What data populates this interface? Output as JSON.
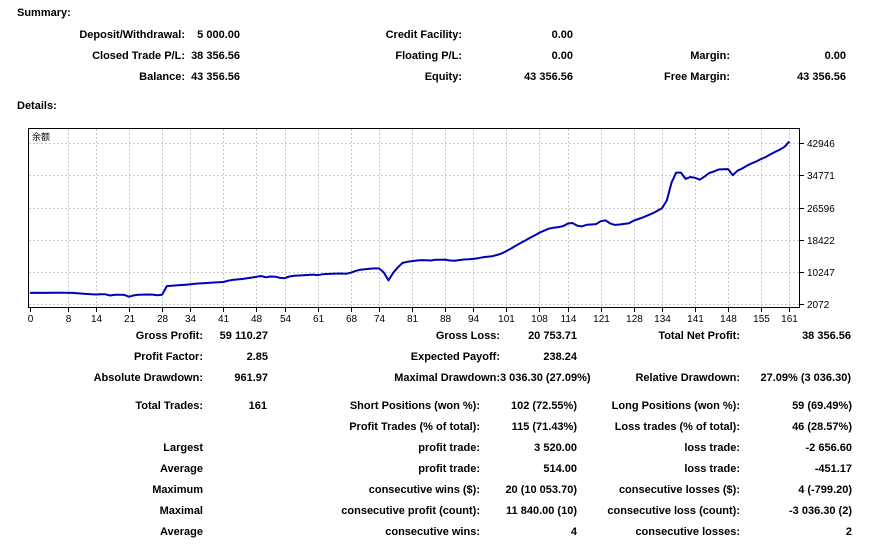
{
  "summary": {
    "heading": "Summary:",
    "rows": [
      [
        "Deposit/Withdrawal:",
        "5 000.00",
        "Credit Facility:",
        "0.00",
        "",
        ""
      ],
      [
        "Closed Trade P/L:",
        "38 356.56",
        "Floating P/L:",
        "0.00",
        "Margin:",
        "0.00"
      ],
      [
        "Balance:",
        "43 356.56",
        "Equity:",
        "43 356.56",
        "Free Margin:",
        "43 356.56"
      ]
    ]
  },
  "details": {
    "heading": "Details:",
    "rows": [
      [
        "Gross Profit:",
        "59 110.27",
        "Gross Loss:",
        "20 753.71",
        "Total Net Profit:",
        "38 356.56"
      ],
      [
        "Profit Factor:",
        "2.85",
        "Expected Payoff:",
        "238.24",
        "",
        ""
      ],
      [
        "Absolute Drawdown:",
        "961.97",
        "Maximal Drawdown:",
        "3 036.30 (27.09%)",
        "Relative Drawdown:",
        "27.09% (3 036.30)"
      ]
    ]
  },
  "stats": {
    "rows": [
      [
        "Total Trades:",
        "161",
        "Short Positions (won %):",
        "102 (72.55%)",
        "Long Positions (won %):",
        "59 (69.49%)"
      ],
      [
        "",
        "",
        "Profit Trades (% of total):",
        "115 (71.43%)",
        "Loss trades (% of total):",
        "46 (28.57%)"
      ],
      [
        "Largest",
        "",
        "profit trade:",
        "3 520.00",
        "loss trade:",
        "-2 656.60"
      ],
      [
        "Average",
        "",
        "profit trade:",
        "514.00",
        "loss trade:",
        "-451.17"
      ],
      [
        "Maximum",
        "",
        "consecutive wins ($):",
        "20 (10 053.70)",
        "consecutive losses ($):",
        "4 (-799.20)"
      ],
      [
        "Maximal",
        "",
        "consecutive profit (count):",
        "11 840.00 (10)",
        "consecutive loss (count):",
        "-3 036.30 (2)"
      ],
      [
        "Average",
        "",
        "consecutive wins:",
        "4",
        "consecutive losses:",
        "2"
      ]
    ]
  },
  "chart_data": {
    "type": "line",
    "title": "",
    "legend_label": "余额",
    "line_color": "#0000B4",
    "grid_color": "#C9C9C9",
    "border_color": "#000000",
    "legend_position": "top-left",
    "grid": true,
    "xlabel": "",
    "ylabel": "",
    "x_ticks": [
      0,
      8,
      14,
      21,
      28,
      34,
      41,
      48,
      54,
      61,
      68,
      74,
      81,
      88,
      94,
      101,
      108,
      114,
      121,
      128,
      134,
      141,
      148,
      155,
      161
    ],
    "y_ticks": [
      2072,
      10247,
      18422,
      26596,
      34771,
      42946
    ],
    "x_range": [
      -0.42,
      163.25
    ],
    "y_range": [
      1186,
      46745
    ],
    "points": [
      [
        0,
        5000
      ],
      [
        1,
        5060
      ],
      [
        3,
        5020
      ],
      [
        5,
        5070
      ],
      [
        7,
        5050
      ],
      [
        9,
        5000
      ],
      [
        11,
        4820
      ],
      [
        13,
        4660
      ],
      [
        14,
        4600
      ],
      [
        15,
        4680
      ],
      [
        16,
        4660
      ],
      [
        17,
        4360
      ],
      [
        18,
        4520
      ],
      [
        19,
        4550
      ],
      [
        20,
        4500
      ],
      [
        21,
        4038
      ],
      [
        22,
        4380
      ],
      [
        23,
        4560
      ],
      [
        25,
        4600
      ],
      [
        26,
        4580
      ],
      [
        27,
        4420
      ],
      [
        28,
        4550
      ],
      [
        29,
        6740
      ],
      [
        31,
        6900
      ],
      [
        33,
        7080
      ],
      [
        35,
        7300
      ],
      [
        37,
        7500
      ],
      [
        39,
        7650
      ],
      [
        41,
        7760
      ],
      [
        42,
        8100
      ],
      [
        43,
        8300
      ],
      [
        45,
        8520
      ],
      [
        46,
        8700
      ],
      [
        47,
        8880
      ],
      [
        48,
        9080
      ],
      [
        49,
        9280
      ],
      [
        50,
        8950
      ],
      [
        51,
        9150
      ],
      [
        52,
        9100
      ],
      [
        53,
        8800
      ],
      [
        54,
        8720
      ],
      [
        55,
        9150
      ],
      [
        56,
        9330
      ],
      [
        58,
        9500
      ],
      [
        60,
        9630
      ],
      [
        61,
        9520
      ],
      [
        62,
        9720
      ],
      [
        64,
        9880
      ],
      [
        66,
        9930
      ],
      [
        67,
        9830
      ],
      [
        68,
        10120
      ],
      [
        69,
        10520
      ],
      [
        70,
        10870
      ],
      [
        71,
        11000
      ],
      [
        72,
        11130
      ],
      [
        73,
        11210
      ],
      [
        74,
        11206
      ],
      [
        75,
        10200
      ],
      [
        76,
        8170
      ],
      [
        77,
        10100
      ],
      [
        78,
        11500
      ],
      [
        79,
        12600
      ],
      [
        80,
        12890
      ],
      [
        81,
        13060
      ],
      [
        82,
        13200
      ],
      [
        83,
        13320
      ],
      [
        84,
        13260
      ],
      [
        85,
        13220
      ],
      [
        86,
        13380
      ],
      [
        87,
        13420
      ],
      [
        88,
        13430
      ],
      [
        89,
        13200
      ],
      [
        90,
        13150
      ],
      [
        91,
        13300
      ],
      [
        92,
        13450
      ],
      [
        93,
        13520
      ],
      [
        94,
        13610
      ],
      [
        95,
        13800
      ],
      [
        96,
        14010
      ],
      [
        97,
        14150
      ],
      [
        98,
        14300
      ],
      [
        99,
        14600
      ],
      [
        100,
        15000
      ],
      [
        101,
        15580
      ],
      [
        102,
        16250
      ],
      [
        103,
        16950
      ],
      [
        104,
        17650
      ],
      [
        105,
        18250
      ],
      [
        106,
        18950
      ],
      [
        107,
        19550
      ],
      [
        108,
        20250
      ],
      [
        109,
        20750
      ],
      [
        110,
        21260
      ],
      [
        111,
        21500
      ],
      [
        112,
        21650
      ],
      [
        113,
        21900
      ],
      [
        114,
        22550
      ],
      [
        115,
        22700
      ],
      [
        116,
        22050
      ],
      [
        117,
        21850
      ],
      [
        118,
        22250
      ],
      [
        119,
        22330
      ],
      [
        120,
        22420
      ],
      [
        121,
        23150
      ],
      [
        122,
        23360
      ],
      [
        123,
        22600
      ],
      [
        124,
        22230
      ],
      [
        125,
        22330
      ],
      [
        126,
        22470
      ],
      [
        127,
        22630
      ],
      [
        128,
        23300
      ],
      [
        129,
        23720
      ],
      [
        130,
        24150
      ],
      [
        131,
        24650
      ],
      [
        132,
        25150
      ],
      [
        133,
        25750
      ],
      [
        134,
        26450
      ],
      [
        135,
        28400
      ],
      [
        136,
        32900
      ],
      [
        137,
        35450
      ],
      [
        138,
        35450
      ],
      [
        139,
        33850
      ],
      [
        140,
        34350
      ],
      [
        141,
        34150
      ],
      [
        142,
        33650
      ],
      [
        143,
        34450
      ],
      [
        144,
        35350
      ],
      [
        145,
        35750
      ],
      [
        146,
        36250
      ],
      [
        147,
        36300
      ],
      [
        148,
        36350
      ],
      [
        149,
        34800
      ],
      [
        150,
        35950
      ],
      [
        151,
        36500
      ],
      [
        152,
        37200
      ],
      [
        153,
        37800
      ],
      [
        154,
        38300
      ],
      [
        155,
        38900
      ],
      [
        156,
        39400
      ],
      [
        157,
        40100
      ],
      [
        158,
        40700
      ],
      [
        159,
        41300
      ],
      [
        160,
        42000
      ],
      [
        161,
        43356
      ]
    ]
  }
}
